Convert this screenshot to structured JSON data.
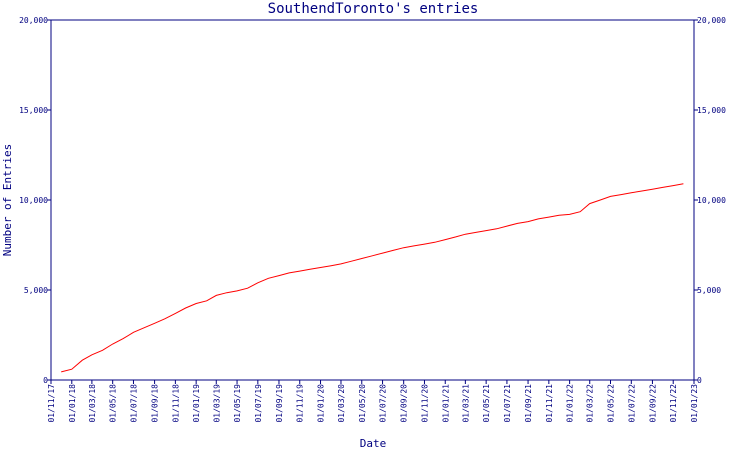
{
  "chart_data": {
    "type": "line",
    "title": "SouthendToronto's entries",
    "xlabel": "Date",
    "ylabel": "Number of Entries",
    "ylim": [
      0,
      20000
    ],
    "y_ticks": [
      "0",
      "5,000",
      "10,000",
      "15,000",
      "20,000"
    ],
    "y_tick_values": [
      0,
      5000,
      10000,
      15000,
      20000
    ],
    "x_ticks": [
      "01/11/17",
      "01/01/18",
      "01/03/18",
      "01/05/18",
      "01/07/18",
      "01/09/18",
      "01/11/18",
      "01/01/19",
      "01/03/19",
      "01/05/19",
      "01/07/19",
      "01/09/19",
      "01/11/19",
      "01/01/20",
      "01/03/20",
      "01/05/20",
      "01/07/20",
      "01/09/20",
      "01/11/20",
      "01/01/21",
      "01/03/21",
      "01/05/21",
      "01/07/21",
      "01/09/21",
      "01/11/21",
      "01/01/22",
      "01/03/22",
      "01/05/22",
      "01/07/22",
      "01/09/22",
      "01/11/22",
      "01/01/23"
    ],
    "grid": false,
    "colors": {
      "axis": "#000080",
      "line": "#ff0000",
      "background": "#ffffff"
    },
    "series": [
      {
        "x": [
          "2017-12-01",
          "2018-01-01",
          "2018-02-01",
          "2018-03-01",
          "2018-04-01",
          "2018-05-01",
          "2018-06-01",
          "2018-07-01",
          "2018-08-01",
          "2018-09-01",
          "2018-10-01",
          "2018-11-01",
          "2018-12-01",
          "2019-01-01",
          "2019-02-01",
          "2019-03-01",
          "2019-04-01",
          "2019-05-01",
          "2019-06-01",
          "2019-07-01",
          "2019-08-01",
          "2019-09-01",
          "2019-10-01",
          "2019-11-01",
          "2019-12-01",
          "2020-01-01",
          "2020-02-01",
          "2020-03-01",
          "2020-04-01",
          "2020-05-01",
          "2020-06-01",
          "2020-07-01",
          "2020-08-01",
          "2020-09-01",
          "2020-10-01",
          "2020-11-01",
          "2020-12-01",
          "2021-01-01",
          "2021-02-01",
          "2021-03-01",
          "2021-04-01",
          "2021-05-01",
          "2021-06-01",
          "2021-07-01",
          "2021-08-01",
          "2021-09-01",
          "2021-10-01",
          "2021-11-01",
          "2021-12-01",
          "2022-01-01",
          "2022-02-01",
          "2022-03-01",
          "2022-04-01",
          "2022-05-01",
          "2022-06-01",
          "2022-07-01",
          "2022-08-01",
          "2022-09-01",
          "2022-10-01",
          "2022-11-01",
          "2022-12-01"
        ],
        "values": [
          450,
          600,
          1100,
          1400,
          1650,
          2000,
          2300,
          2650,
          2900,
          3150,
          3400,
          3700,
          4000,
          4250,
          4400,
          4700,
          4850,
          4950,
          5100,
          5400,
          5650,
          5800,
          5950,
          6050,
          6150,
          6250,
          6350,
          6450,
          6600,
          6750,
          6900,
          7050,
          7200,
          7350,
          7450,
          7550,
          7650,
          7800,
          7950,
          8100,
          8200,
          8300,
          8400,
          8550,
          8700,
          8800,
          8950,
          9050,
          9150,
          9200,
          9350,
          9800,
          10000,
          10200,
          10300,
          10400,
          10500,
          10600,
          10700,
          10800,
          10900
        ]
      }
    ]
  }
}
